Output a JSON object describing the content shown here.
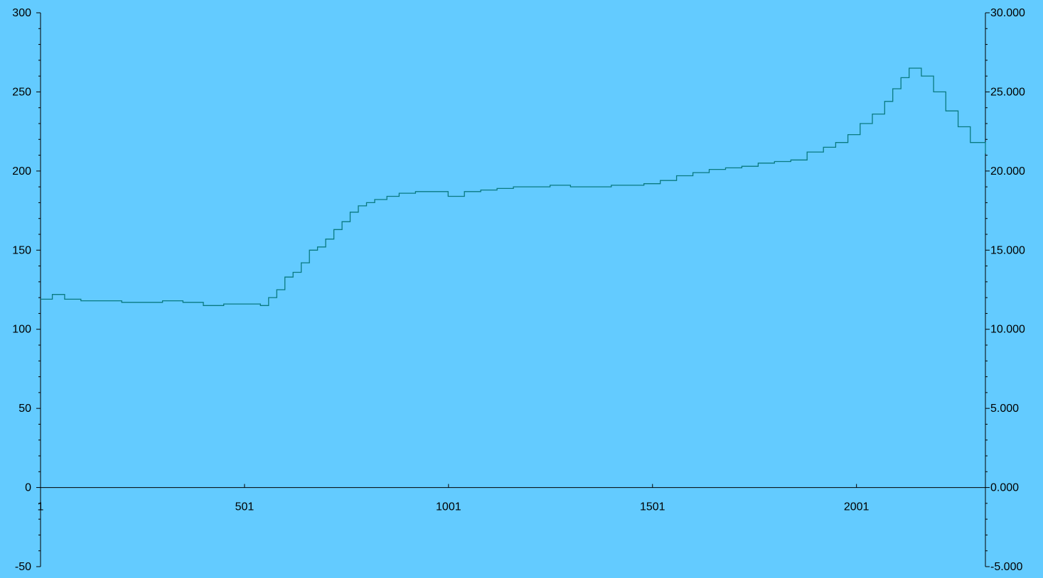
{
  "chart_data": {
    "type": "line",
    "title": "",
    "xlabel": "",
    "ylabel": "",
    "y2label": "",
    "background_color": "#63cbff",
    "line_color": "#0a7a80",
    "axis_color": "#000000",
    "grid": false,
    "legend": "none",
    "xlim": [
      1,
      2317
    ],
    "ylim": [
      -50,
      300
    ],
    "y2lim": [
      -5,
      30
    ],
    "x_ticks": [
      1,
      501,
      1001,
      1501,
      2001
    ],
    "x_tick_labels": [
      "1",
      "501",
      "1001",
      "1501",
      "2001"
    ],
    "y_ticks": [
      -50,
      0,
      50,
      100,
      150,
      200,
      250,
      300
    ],
    "y_tick_labels": [
      "-50",
      "0",
      "50",
      "100",
      "150",
      "200",
      "250",
      "300"
    ],
    "y2_ticks": [
      -5,
      0,
      5,
      10,
      15,
      20,
      25,
      30
    ],
    "y2_tick_labels": [
      "-5.000",
      "0.000",
      "5.000",
      "10.000",
      "15.000",
      "20.000",
      "25.000",
      "30.000"
    ],
    "series": [
      {
        "axis": "left",
        "x": [
          1,
          30,
          60,
          100,
          150,
          200,
          250,
          300,
          350,
          400,
          450,
          500,
          540,
          560,
          580,
          600,
          620,
          640,
          660,
          680,
          700,
          720,
          740,
          760,
          780,
          800,
          820,
          850,
          880,
          920,
          960,
          1000,
          1040,
          1080,
          1120,
          1160,
          1200,
          1250,
          1300,
          1350,
          1400,
          1450,
          1480,
          1520,
          1560,
          1600,
          1640,
          1680,
          1720,
          1760,
          1800,
          1840,
          1880,
          1920,
          1950,
          1980,
          2010,
          2040,
          2070,
          2090,
          2110,
          2130,
          2160,
          2190,
          2220,
          2250,
          2280,
          2317
        ],
        "y": [
          119,
          122,
          119,
          118,
          118,
          117,
          117,
          118,
          117,
          115,
          116,
          116,
          115,
          120,
          125,
          133,
          136,
          142,
          150,
          152,
          157,
          163,
          168,
          174,
          178,
          180,
          182,
          184,
          186,
          187,
          187,
          184,
          187,
          188,
          189,
          190,
          190,
          191,
          190,
          190,
          191,
          191,
          192,
          194,
          197,
          199,
          201,
          202,
          203,
          205,
          206,
          207,
          212,
          215,
          218,
          223,
          230,
          236,
          244,
          252,
          259,
          265,
          260,
          250,
          238,
          228,
          218,
          211
        ]
      }
    ]
  }
}
